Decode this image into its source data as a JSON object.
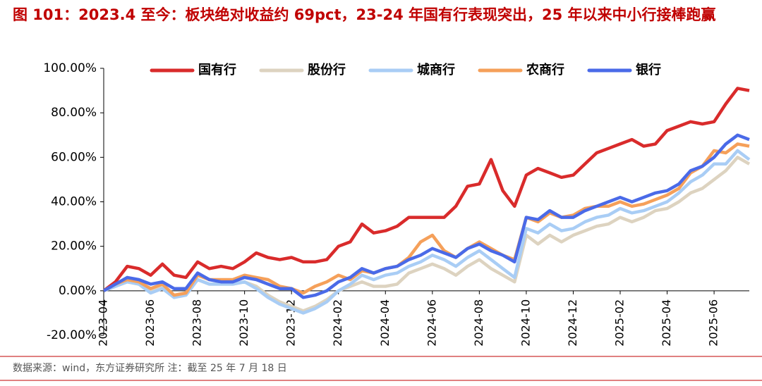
{
  "chart_data": {
    "type": "line",
    "title": "图 101：2023.4 至今：板块绝对收益约 69pct，23-24 年国有行表现突出，25 年以来中小行接棒跑赢",
    "source": "数据来源：wind，东方证券研究所 注：截至 25 年 7 月 18 日",
    "categories": [
      "2023-04",
      null,
      null,
      null,
      "2023-06",
      null,
      null,
      null,
      "2023-08",
      null,
      null,
      null,
      "2023-10",
      null,
      null,
      null,
      "2023-12",
      null,
      null,
      null,
      "2024-02",
      null,
      null,
      null,
      "2024-04",
      null,
      null,
      null,
      "2024-06",
      null,
      null,
      null,
      "2024-08",
      null,
      null,
      null,
      "2024-10",
      null,
      null,
      null,
      "2024-12",
      null,
      null,
      null,
      "2025-02",
      null,
      null,
      null,
      "2025-04",
      null,
      null,
      null,
      "2025-06",
      null,
      null,
      null
    ],
    "series": [
      {
        "name": "国有行",
        "color": "#d92b2b",
        "values": [
          0,
          4,
          11,
          10,
          7,
          12,
          7,
          6,
          13,
          10,
          11,
          10,
          13,
          17,
          15,
          14,
          15,
          13,
          13,
          14,
          20,
          22,
          30,
          26,
          27,
          29,
          33,
          33,
          33,
          33,
          38,
          47,
          48,
          59,
          45,
          38,
          52,
          55,
          53,
          51,
          52,
          57,
          62,
          64,
          66,
          68,
          65,
          66,
          72,
          74,
          76,
          75,
          76,
          84,
          91,
          90
        ]
      },
      {
        "name": "股份行",
        "color": "#ddd3c0",
        "values": [
          0,
          2,
          4,
          3,
          0,
          2,
          -2,
          -1,
          5,
          3,
          3,
          3,
          4,
          2,
          -2,
          -5,
          -7,
          -9,
          -7,
          -4,
          0,
          2,
          4,
          2,
          2,
          3,
          8,
          10,
          12,
          10,
          7,
          11,
          14,
          10,
          7,
          4,
          25,
          21,
          25,
          22,
          25,
          27,
          29,
          30,
          33,
          31,
          33,
          36,
          37,
          40,
          44,
          46,
          50,
          54,
          60,
          57
        ]
      },
      {
        "name": "城商行",
        "color": "#a9cdf5",
        "values": [
          0,
          2,
          4,
          3,
          -1,
          1,
          -3,
          -2,
          5,
          3,
          3,
          3,
          4,
          1,
          -3,
          -6,
          -8,
          -10,
          -8,
          -5,
          0,
          3,
          7,
          5,
          7,
          8,
          11,
          13,
          16,
          14,
          11,
          15,
          18,
          14,
          10,
          6,
          28,
          26,
          30,
          27,
          28,
          31,
          33,
          34,
          37,
          35,
          36,
          38,
          40,
          44,
          49,
          52,
          57,
          57,
          63,
          59
        ]
      },
      {
        "name": "农商行",
        "color": "#f5a05a",
        "values": [
          0,
          3,
          5,
          4,
          1,
          3,
          -2,
          -1,
          7,
          5,
          5,
          5,
          7,
          6,
          5,
          2,
          1,
          -1,
          2,
          4,
          7,
          5,
          9,
          8,
          10,
          11,
          15,
          22,
          25,
          18,
          15,
          19,
          22,
          19,
          16,
          14,
          33,
          31,
          35,
          33,
          34,
          37,
          38,
          38,
          40,
          38,
          39,
          41,
          43,
          46,
          53,
          56,
          63,
          62,
          66,
          65
        ]
      },
      {
        "name": "银行",
        "color": "#4a6ae8",
        "values": [
          0,
          3,
          6,
          5,
          3,
          4,
          1,
          1,
          8,
          5,
          4,
          4,
          6,
          5,
          3,
          1,
          1,
          -3,
          -2,
          0,
          4,
          6,
          10,
          8,
          10,
          11,
          14,
          16,
          19,
          17,
          15,
          19,
          21,
          18,
          16,
          13,
          33,
          32,
          36,
          33,
          33,
          36,
          38,
          40,
          42,
          40,
          42,
          44,
          45,
          48,
          54,
          56,
          60,
          66,
          70,
          68
        ]
      }
    ],
    "ylim": [
      -20,
      100
    ],
    "yticks": [
      {
        "value": -20,
        "label": "-20.00%"
      },
      {
        "value": 0,
        "label": "0.00%"
      },
      {
        "value": 20,
        "label": "20.00%"
      },
      {
        "value": 40,
        "label": "40.00%"
      },
      {
        "value": 60,
        "label": "60.00%"
      },
      {
        "value": 80,
        "label": "80.00%"
      },
      {
        "value": 100,
        "label": "100.00%"
      }
    ],
    "legend": "top"
  }
}
